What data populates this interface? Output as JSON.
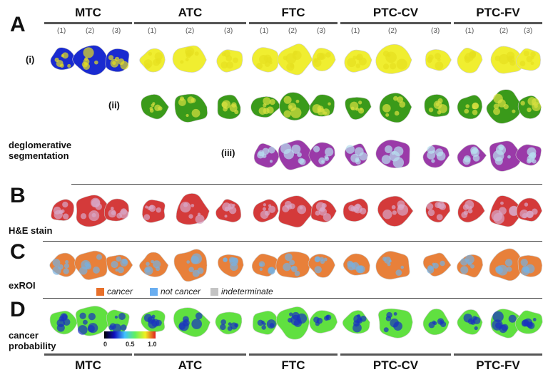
{
  "panels": {
    "A": "A",
    "B": "B",
    "C": "C",
    "D": "D"
  },
  "row_labels": {
    "i": "(i)",
    "ii": "(ii)",
    "iii": "(iii)",
    "seg": "deglomerative segmentation",
    "he": "H&E stain",
    "exroi": "exROI",
    "prob": "cancer probability"
  },
  "groups": [
    "MTC",
    "ATC",
    "FTC",
    "PTC-CV",
    "PTC-FV"
  ],
  "sample_labels": [
    "(1)",
    "(2)",
    "(3)"
  ],
  "legend": [
    {
      "label": "cancer",
      "color": "#e8702a"
    },
    {
      "label": "not cancer",
      "color": "#6aaef0"
    },
    {
      "label": "indeterminate",
      "color": "#c4c4c4"
    }
  ],
  "colorbar": {
    "ticks": [
      "0",
      "0.5",
      "1.0"
    ],
    "colors": [
      "#000000",
      "#1010c0",
      "#40c0ff",
      "#60f060",
      "#f0f020",
      "#e02020"
    ]
  },
  "row_palettes": {
    "i": [
      "#f0ee30",
      "#e6e020"
    ],
    "i_mtc": [
      "#1a2bd0",
      "#e6e020"
    ],
    "ii": [
      "#3a9a1a",
      "#d8e040"
    ],
    "iii": [
      "#9a3aa8",
      "#b8e0f0"
    ],
    "he": [
      "#d43a3a",
      "#d8a8c8"
    ],
    "exroi": [
      "#e8803a",
      "#78b0e0"
    ],
    "prob": [
      "#60e040",
      "#1830c0"
    ]
  }
}
